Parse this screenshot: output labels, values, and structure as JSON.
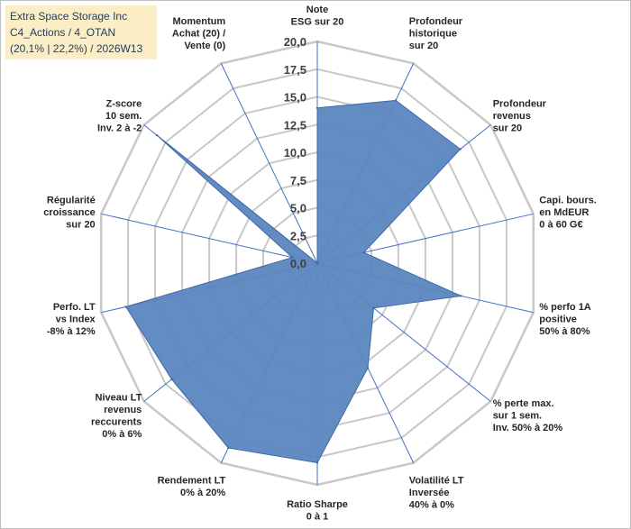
{
  "chart_data": {
    "type": "radar",
    "title_lines": [
      "Extra Space Storage Inc",
      "C4_Actions / 4_OTAN",
      "(20,1% | 22,2%) / 2026W13"
    ],
    "rlim": [
      0,
      20
    ],
    "rticks": [
      0,
      2.5,
      5,
      7.5,
      10,
      12.5,
      15,
      17.5,
      20
    ],
    "rtick_labels": [
      "0,0",
      "2,5",
      "5,0",
      "7,5",
      "10,0",
      "12,5",
      "15,0",
      "17,5",
      "20,0"
    ],
    "axes": [
      {
        "label_lines": [
          "Note",
          "ESG sur 20"
        ]
      },
      {
        "label_lines": [
          "Profondeur",
          "historique",
          "sur 20"
        ]
      },
      {
        "label_lines": [
          "Profondeur",
          "revenus",
          "sur 20"
        ]
      },
      {
        "label_lines": [
          "Capi. bours.",
          "en MdEUR",
          "0 à 60 G€"
        ]
      },
      {
        "label_lines": [
          "% perfo 1A",
          "positive",
          "50% à 80%"
        ]
      },
      {
        "label_lines": [
          "% perte max.",
          "sur 1 sem.",
          "Inv. 50% à 20%"
        ]
      },
      {
        "label_lines": [
          "Volatilité LT",
          "Inversée",
          "40% à 0%"
        ]
      },
      {
        "label_lines": [
          "Ratio Sharpe",
          "0 à 1"
        ]
      },
      {
        "label_lines": [
          "Rendement LT",
          "0% à 20%"
        ]
      },
      {
        "label_lines": [
          "Niveau LT",
          "revenus",
          "reccurents",
          "0% à 6%"
        ]
      },
      {
        "label_lines": [
          "Perfo. LT",
          "vs Index",
          "-8% à 12%"
        ]
      },
      {
        "label_lines": [
          "Régularité",
          "croissance",
          "sur 20"
        ]
      },
      {
        "label_lines": [
          "Z-score",
          "10 sem.",
          "Inv. 2 à -2"
        ]
      },
      {
        "label_lines": [
          "Momentum",
          "Achat (20) /",
          "Vente (0)"
        ]
      }
    ],
    "series": [
      {
        "values": [
          14.0,
          16.3,
          16.5,
          4.3,
          13.3,
          6.5,
          10.5,
          18.0,
          18.5,
          16.8,
          17.7,
          2.3,
          18.5,
          0.0
        ]
      }
    ],
    "colors": {
      "fill": "#5b86bf",
      "stroke": "#3f68a8",
      "grid": "#c8c8c8",
      "spoke": "#4472c4",
      "title_bg": "#fbeec6",
      "title_text": "#1f3c5a"
    },
    "grid": true,
    "legend": "none"
  }
}
